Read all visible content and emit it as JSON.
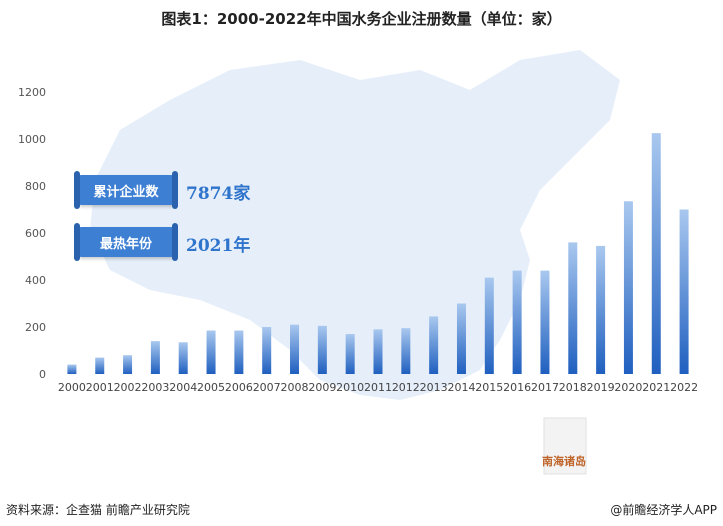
{
  "title": "图表1：2000-2022年中国水务企业注册数量（单位：家）",
  "info": {
    "total_label": "累计企业数",
    "total_value": "7874家",
    "peak_label": "最热年份",
    "peak_value": "2021年"
  },
  "map_label": "南海诸岛",
  "watermark": "前瞻产业研究院",
  "source": "资料来源：企查猫 前瞻产业研究院",
  "credit": "@前瞻经济学人APP",
  "chart_data": {
    "type": "bar",
    "categories": [
      "2000",
      "2001",
      "2002",
      "2003",
      "2004",
      "2005",
      "2006",
      "2007",
      "2008",
      "2009",
      "2010",
      "2011",
      "2012",
      "2013",
      "2014",
      "2015",
      "2016",
      "2017",
      "2018",
      "2019",
      "2020",
      "2021",
      "2022"
    ],
    "values": [
      40,
      70,
      80,
      140,
      135,
      185,
      185,
      200,
      210,
      205,
      170,
      190,
      195,
      245,
      300,
      410,
      440,
      440,
      560,
      545,
      735,
      1025,
      700
    ],
    "ylim": [
      0,
      1200
    ],
    "yticks": [
      0,
      200,
      400,
      600,
      800,
      1000,
      1200
    ],
    "bar_color_top": "#a9c8ef",
    "bar_color_bottom": "#1f5fbf"
  }
}
